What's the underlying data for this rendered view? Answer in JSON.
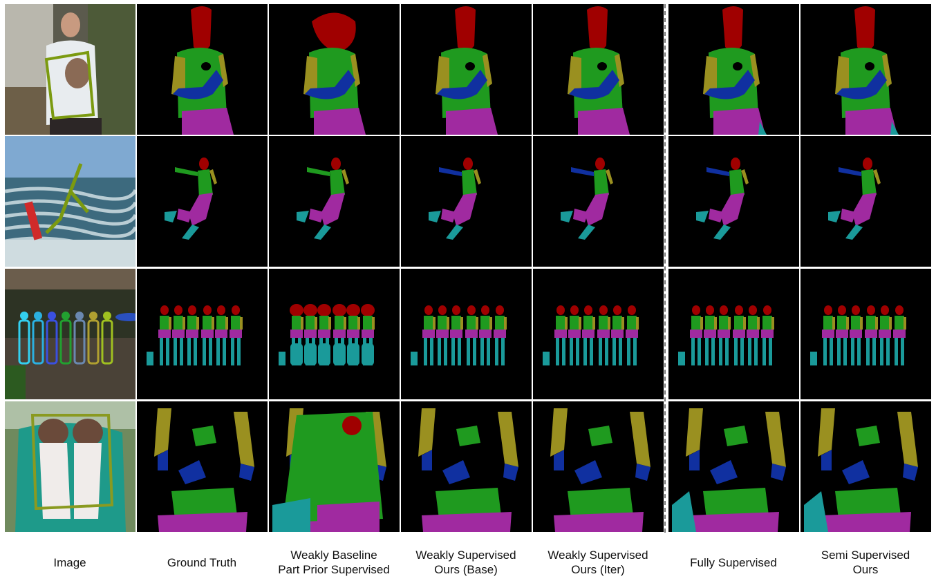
{
  "figure": {
    "columns": [
      {
        "id": "image",
        "lines": [
          "Image"
        ]
      },
      {
        "id": "ground-truth",
        "lines": [
          "Ground Truth"
        ]
      },
      {
        "id": "weakly-baseline",
        "lines": [
          "Weakly Baseline",
          "Part Prior Supervised"
        ]
      },
      {
        "id": "weakly-base",
        "lines": [
          "Weakly Supervised",
          "Ours (Base)"
        ]
      },
      {
        "id": "weakly-iter",
        "lines": [
          "Weakly Supervised",
          "Ours (Iter)"
        ]
      },
      {
        "id": "fully",
        "lines": [
          "Fully Supervised"
        ]
      },
      {
        "id": "semi",
        "lines": [
          "Semi Supervised",
          "Ours"
        ]
      }
    ],
    "rows": [
      "person-with-dog",
      "kitesurfer",
      "group-of-seven",
      "person-holding-dogs"
    ],
    "part_colors": {
      "head": "#a00000",
      "torso": "#1f9a1f",
      "upper_arm": "#9a9020",
      "lower_arm": "#1030a0",
      "upper_leg": "#a02aa0",
      "lower_leg": "#1a9a9a",
      "background": "#000000"
    }
  }
}
